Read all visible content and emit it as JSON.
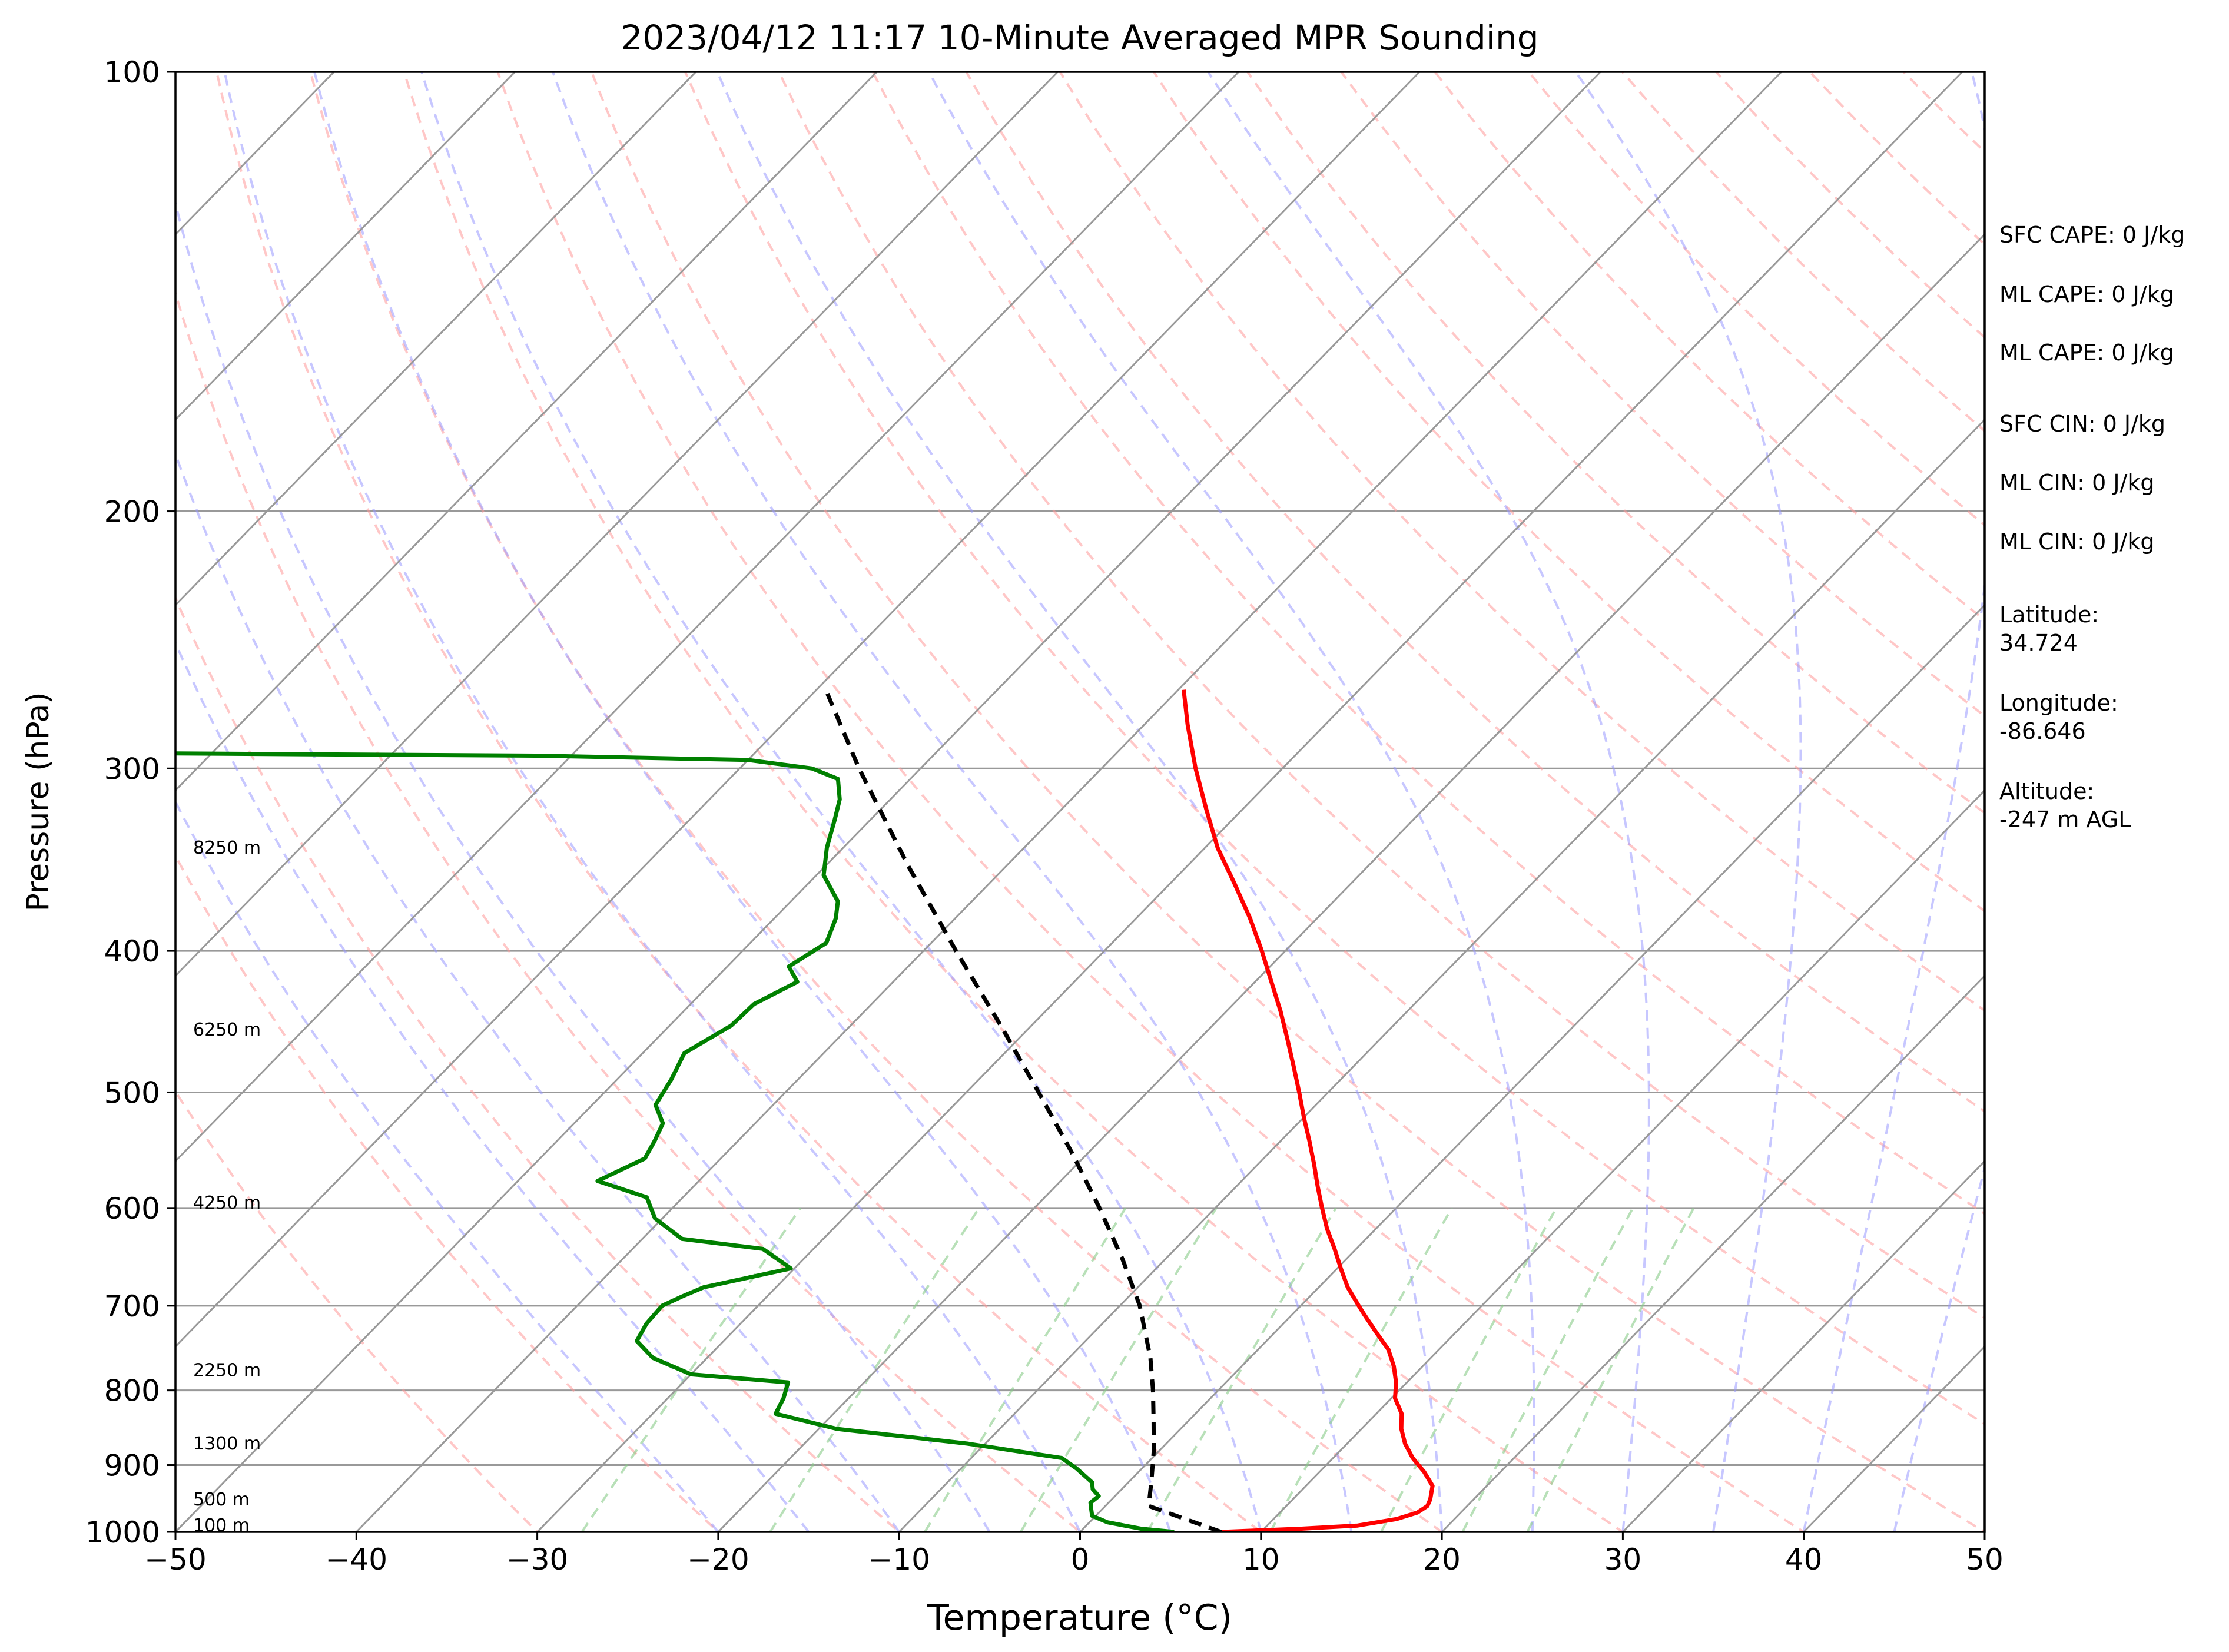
{
  "chart_data": {
    "type": "line",
    "title": "2023/04/12 11:17 10-Minute Averaged MPR Sounding",
    "xlabel": "Temperature (°C)",
    "ylabel": "Pressure (hPa)",
    "xlim": [
      -50,
      50
    ],
    "ylim": [
      1000,
      100
    ],
    "y_scale": "log",
    "x_ticks": [
      "−50",
      "−40",
      "−30",
      "−20",
      "−10",
      "0",
      "10",
      "20",
      "30",
      "40",
      "50"
    ],
    "y_ticks": [
      "100",
      "200",
      "300",
      "400",
      "500",
      "600",
      "700",
      "800",
      "900",
      "1000"
    ],
    "skew_degrees": 45,
    "grid": true,
    "colors": {
      "temperature": "#ff0000",
      "dewpoint": "#008000",
      "parcel": "#000000",
      "dry_adiabats": "#ff9999",
      "moist_adiabats": "#9999ff",
      "mixing_ratio": "#88cc88",
      "isotherms": "#999999"
    },
    "series": [
      {
        "role": "temperature",
        "points": [
          {
            "p": 1000,
            "t": 7.8
          },
          {
            "p": 995,
            "t": 12.0
          },
          {
            "p": 990,
            "t": 15.0
          },
          {
            "p": 980,
            "t": 16.8
          },
          {
            "p": 970,
            "t": 17.6
          },
          {
            "p": 960,
            "t": 17.8
          },
          {
            "p": 950,
            "t": 17.6
          },
          {
            "p": 930,
            "t": 17.0
          },
          {
            "p": 910,
            "t": 15.8
          },
          {
            "p": 890,
            "t": 14.4
          },
          {
            "p": 870,
            "t": 13.2
          },
          {
            "p": 850,
            "t": 12.2
          },
          {
            "p": 830,
            "t": 11.4
          },
          {
            "p": 810,
            "t": 10.2
          },
          {
            "p": 790,
            "t": 9.4
          },
          {
            "p": 770,
            "t": 8.4
          },
          {
            "p": 750,
            "t": 7.2
          },
          {
            "p": 730,
            "t": 5.6
          },
          {
            "p": 710,
            "t": 4.0
          },
          {
            "p": 700,
            "t": 3.2
          },
          {
            "p": 680,
            "t": 1.6
          },
          {
            "p": 660,
            "t": 0.2
          },
          {
            "p": 640,
            "t": -1.2
          },
          {
            "p": 620,
            "t": -2.7
          },
          {
            "p": 600,
            "t": -4.1
          },
          {
            "p": 580,
            "t": -5.5
          },
          {
            "p": 560,
            "t": -6.9
          },
          {
            "p": 540,
            "t": -8.4
          },
          {
            "p": 520,
            "t": -10.0
          },
          {
            "p": 500,
            "t": -11.6
          },
          {
            "p": 480,
            "t": -13.3
          },
          {
            "p": 460,
            "t": -15.1
          },
          {
            "p": 440,
            "t": -17.0
          },
          {
            "p": 420,
            "t": -19.1
          },
          {
            "p": 400,
            "t": -21.3
          },
          {
            "p": 380,
            "t": -23.7
          },
          {
            "p": 360,
            "t": -26.4
          },
          {
            "p": 340,
            "t": -29.3
          },
          {
            "p": 320,
            "t": -32.0
          },
          {
            "p": 300,
            "t": -34.8
          },
          {
            "p": 280,
            "t": -37.6
          },
          {
            "p": 265,
            "t": -39.7
          }
        ]
      },
      {
        "role": "dewpoint",
        "points": [
          {
            "p": 1000,
            "t": 5.2
          },
          {
            "p": 995,
            "t": 3.2
          },
          {
            "p": 985,
            "t": 1.0
          },
          {
            "p": 975,
            "t": -0.2
          },
          {
            "p": 965,
            "t": -0.6
          },
          {
            "p": 955,
            "t": -1.0
          },
          {
            "p": 945,
            "t": -0.9
          },
          {
            "p": 935,
            "t": -1.6
          },
          {
            "p": 925,
            "t": -2.0
          },
          {
            "p": 905,
            "t": -3.6
          },
          {
            "p": 890,
            "t": -5.0
          },
          {
            "p": 870,
            "t": -11.0
          },
          {
            "p": 850,
            "t": -19.0
          },
          {
            "p": 830,
            "t": -23.2
          },
          {
            "p": 810,
            "t": -23.6
          },
          {
            "p": 790,
            "t": -24.2
          },
          {
            "p": 780,
            "t": -30.0
          },
          {
            "p": 760,
            "t": -33.0
          },
          {
            "p": 740,
            "t": -34.8
          },
          {
            "p": 720,
            "t": -35.2
          },
          {
            "p": 700,
            "t": -35.3
          },
          {
            "p": 690,
            "t": -34.7
          },
          {
            "p": 680,
            "t": -34.0
          },
          {
            "p": 660,
            "t": -30.2
          },
          {
            "p": 640,
            "t": -32.8
          },
          {
            "p": 630,
            "t": -37.8
          },
          {
            "p": 610,
            "t": -40.4
          },
          {
            "p": 590,
            "t": -42.0
          },
          {
            "p": 575,
            "t": -45.6
          },
          {
            "p": 555,
            "t": -44.2
          },
          {
            "p": 540,
            "t": -44.6
          },
          {
            "p": 525,
            "t": -45.1
          },
          {
            "p": 510,
            "t": -46.5
          },
          {
            "p": 490,
            "t": -47.0
          },
          {
            "p": 470,
            "t": -47.7
          },
          {
            "p": 450,
            "t": -46.6
          },
          {
            "p": 435,
            "t": -46.5
          },
          {
            "p": 420,
            "t": -45.3
          },
          {
            "p": 410,
            "t": -46.6
          },
          {
            "p": 395,
            "t": -45.8
          },
          {
            "p": 380,
            "t": -46.6
          },
          {
            "p": 370,
            "t": -47.4
          },
          {
            "p": 355,
            "t": -49.6
          },
          {
            "p": 340,
            "t": -50.9
          },
          {
            "p": 325,
            "t": -52.0
          },
          {
            "p": 315,
            "t": -52.8
          },
          {
            "p": 305,
            "t": -54.0
          },
          {
            "p": 300,
            "t": -56.0
          },
          {
            "p": 296,
            "t": -60.0
          },
          {
            "p": 294,
            "t": -72.0
          },
          {
            "p": 293,
            "t": -92.0
          }
        ]
      },
      {
        "role": "parcel",
        "points": [
          {
            "p": 1000,
            "t": 7.8
          },
          {
            "p": 960,
            "t": 2.4
          },
          {
            "p": 920,
            "t": 1.1
          },
          {
            "p": 880,
            "t": -0.3
          },
          {
            "p": 840,
            "t": -1.9
          },
          {
            "p": 800,
            "t": -3.6
          },
          {
            "p": 760,
            "t": -5.5
          },
          {
            "p": 700,
            "t": -8.9
          },
          {
            "p": 650,
            "t": -12.4
          },
          {
            "p": 600,
            "t": -16.4
          },
          {
            "p": 550,
            "t": -20.9
          },
          {
            "p": 500,
            "t": -26.0
          },
          {
            "p": 450,
            "t": -31.7
          },
          {
            "p": 400,
            "t": -38.2
          },
          {
            "p": 350,
            "t": -45.4
          },
          {
            "p": 300,
            "t": -53.4
          },
          {
            "p": 266,
            "t": -59.3
          }
        ]
      }
    ],
    "height_labels": [
      {
        "p": 990,
        "text": "100 m"
      },
      {
        "p": 950,
        "text": "500 m"
      },
      {
        "p": 870,
        "text": "1300 m"
      },
      {
        "p": 775,
        "text": "2250 m"
      },
      {
        "p": 595,
        "text": "4250 m"
      },
      {
        "p": 453,
        "text": "6250 m"
      },
      {
        "p": 340,
        "text": "8250 m"
      }
    ]
  },
  "side_panel": {
    "sfc_cape": "SFC CAPE: 0 J/kg",
    "ml_cape_1": "ML CAPE: 0 J/kg",
    "ml_cape_2": "ML CAPE: 0 J/kg",
    "sfc_cin": "SFC CIN: 0 J/kg",
    "ml_cin_1": "ML CIN: 0 J/kg",
    "ml_cin_2": "ML CIN: 0 J/kg",
    "latitude_label": "Latitude:",
    "latitude_value": "34.724",
    "longitude_label": "Longitude:",
    "longitude_value": "-86.646",
    "altitude_label": "Altitude:",
    "altitude_value": "-247 m AGL"
  }
}
